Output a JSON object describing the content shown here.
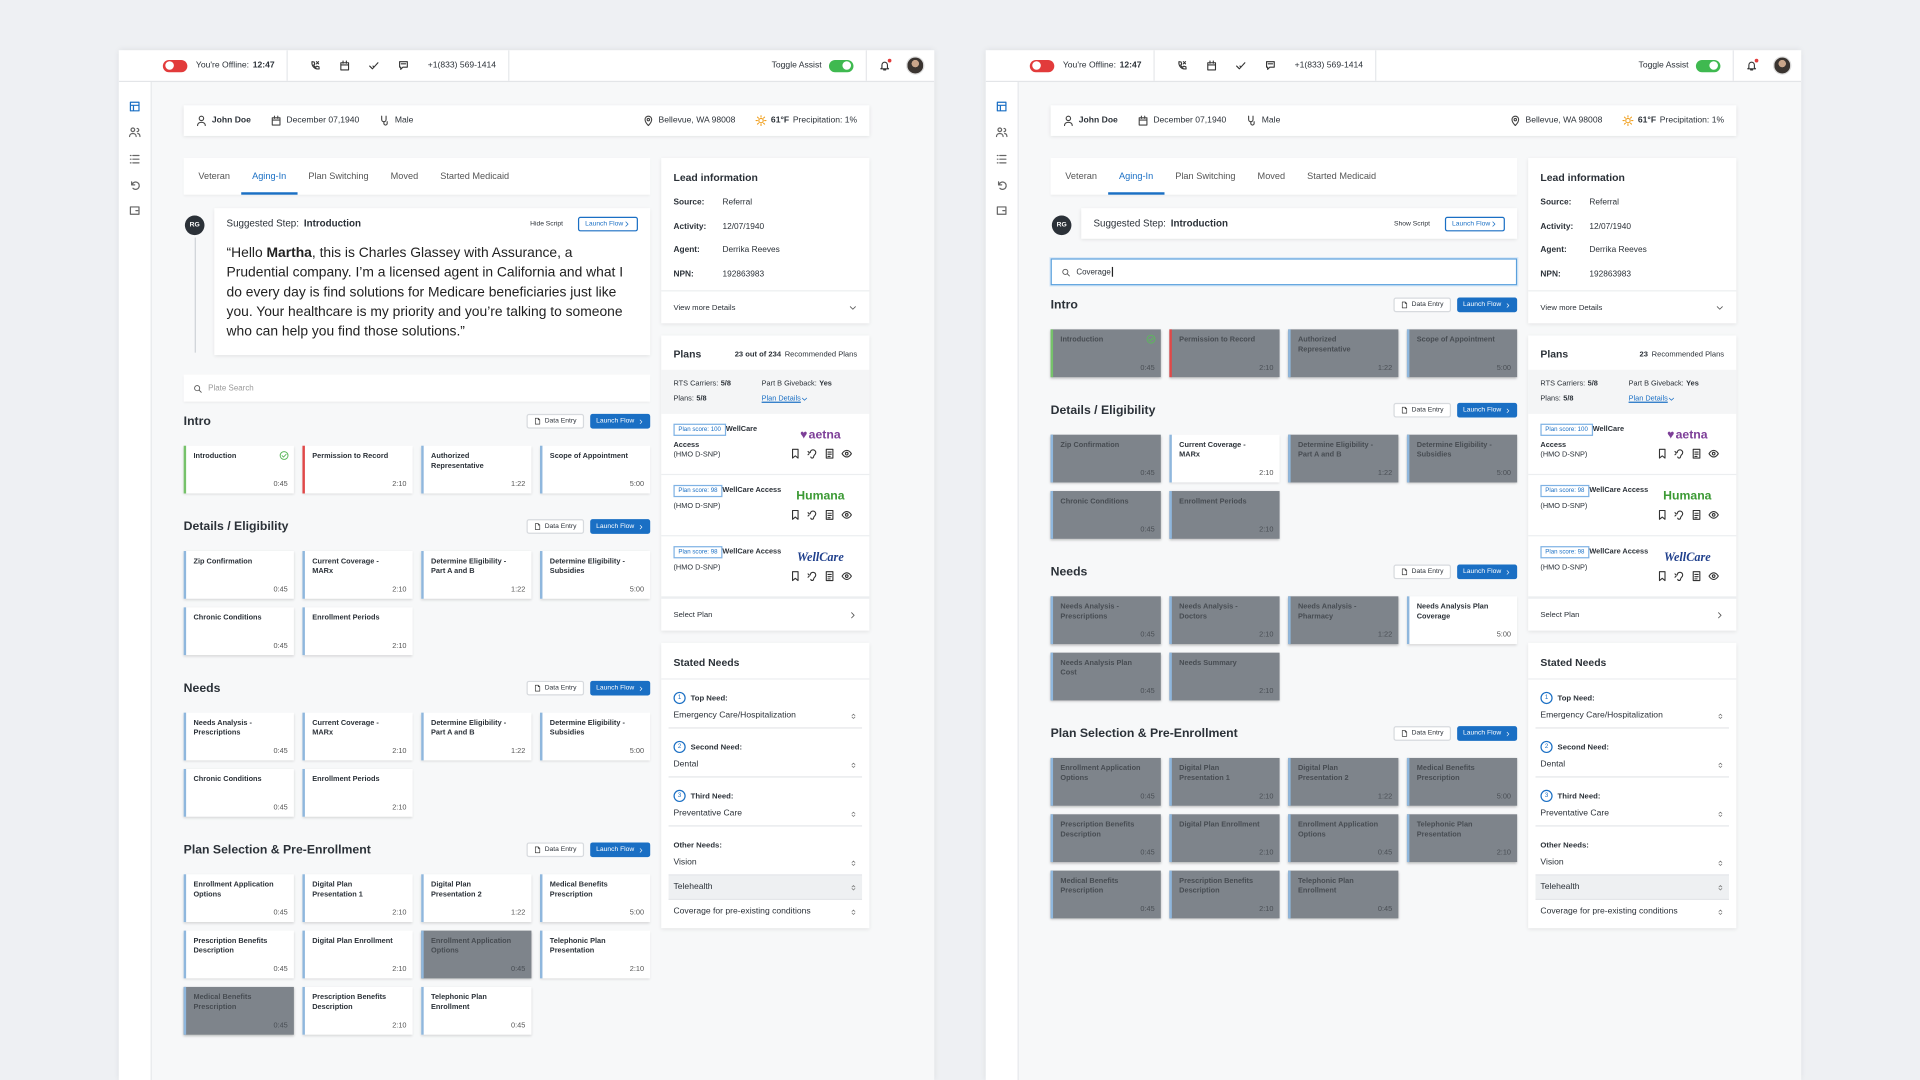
{
  "screens": [
    {
      "topbar": {
        "offline_label": "You're Offline:",
        "offline_time": "12:47",
        "phone": "+1(833) 569-1414",
        "assist_label": "Toggle Assist"
      },
      "patient": {
        "name": "John Doe",
        "dob": "December 07,1940",
        "gender": "Male",
        "location": "Bellevue, WA 98008",
        "temperature": "61°F",
        "precipitation": "Precipitation: 1%"
      },
      "tabs": [
        "Veteran",
        "Aging-In",
        "Plan Switching",
        "Moved",
        "Started Medicaid"
      ],
      "active_tab": 1,
      "suggested": {
        "initials": "RG",
        "label": "Suggested Step:",
        "step": "Introduction",
        "script_toggle": "Hide Script",
        "launch": "Launch Flow",
        "script": [
          {
            "text": "“Hello ",
            "bold": false
          },
          {
            "text": "Martha",
            "bold": true
          },
          {
            "text": ", this is Charles Glassey with Assurance, a Prudential company. I’m a licensed agent in California and what I do every day is find solutions for Medicare beneficiaries just like you. Your healthcare is my priority and you’re talking to someone who can help you find those solutions.”",
            "bold": false
          }
        ]
      },
      "search": {
        "placeholder": "Plate Search"
      },
      "sections": [
        {
          "title": "Intro",
          "data_entry": "Data Entry",
          "launch": "Launch Flow",
          "cards": [
            {
              "title": "Introduction",
              "time": "0:45",
              "state": "complete",
              "muted": false
            },
            {
              "title": "Permission to Record",
              "time": "2:10",
              "state": "declined",
              "muted": false
            },
            {
              "title": "Authorized Representative",
              "time": "1:22",
              "state": "open",
              "muted": false
            },
            {
              "title": "Scope of Appointment",
              "time": "5:00",
              "state": "open",
              "muted": false
            }
          ]
        },
        {
          "title": "Details / Eligibility",
          "data_entry": "Data Entry",
          "launch": "Launch Flow",
          "cards": [
            {
              "title": "Zip Confirmation",
              "time": "0:45",
              "state": "open",
              "muted": false
            },
            {
              "title": "Current Coverage - MARx",
              "time": "2:10",
              "state": "open",
              "muted": false
            },
            {
              "title": "Determine Eligibility - Part A and B",
              "time": "1:22",
              "state": "open",
              "muted": false
            },
            {
              "title": "Determine Eligibility - Subsidies",
              "time": "5:00",
              "state": "open",
              "muted": false
            },
            {
              "title": "Chronic Conditions",
              "time": "0:45",
              "state": "open",
              "muted": false
            },
            {
              "title": "Enrollment Periods",
              "time": "2:10",
              "state": "open",
              "muted": false
            }
          ]
        },
        {
          "title": "Needs",
          "data_entry": "Data Entry",
          "launch": "Launch Flow",
          "cards": [
            {
              "title": "Needs Analysis - Prescriptions",
              "time": "0:45",
              "state": "open",
              "muted": false
            },
            {
              "title": "Current Coverage - MARx",
              "time": "2:10",
              "state": "open",
              "muted": false
            },
            {
              "title": "Determine Eligibility - Part A and B",
              "time": "1:22",
              "state": "open",
              "muted": false
            },
            {
              "title": "Determine Eligibility - Subsidies",
              "time": "5:00",
              "state": "open",
              "muted": false
            },
            {
              "title": "Chronic Conditions",
              "time": "0:45",
              "state": "open",
              "muted": false
            },
            {
              "title": "Enrollment Periods",
              "time": "2:10",
              "state": "open",
              "muted": false
            }
          ]
        },
        {
          "title": "Plan Selection & Pre-Enrollment",
          "data_entry": "Data Entry",
          "launch": "Launch Flow",
          "cards": [
            {
              "title": "Enrollment Application Options",
              "time": "0:45",
              "state": "open",
              "muted": false
            },
            {
              "title": "Digital Plan Presentation 1",
              "time": "2:10",
              "state": "open",
              "muted": false
            },
            {
              "title": "Digital Plan Presentation 2",
              "time": "1:22",
              "state": "open",
              "muted": false
            },
            {
              "title": "Medical Benefits Prescription",
              "time": "5:00",
              "state": "open",
              "muted": false
            },
            {
              "title": "Prescription Benefits Description",
              "time": "0:45",
              "state": "open",
              "muted": false
            },
            {
              "title": "Digital Plan Enrollment",
              "time": "2:10",
              "state": "open",
              "muted": false
            },
            {
              "title": "Enrollment Application Options",
              "time": "0:45",
              "state": "open",
              "muted": true
            },
            {
              "title": "Telephonic Plan Presentation",
              "time": "2:10",
              "state": "open",
              "muted": false
            },
            {
              "title": "Medical Benefits Prescription",
              "time": "0:45",
              "state": "open",
              "muted": true
            },
            {
              "title": "Prescription Benefits Description",
              "time": "2:10",
              "state": "open",
              "muted": false
            },
            {
              "title": "Telephonic Plan Enrollment",
              "time": "0:45",
              "state": "open",
              "muted": false
            }
          ]
        }
      ],
      "lead": {
        "title": "Lead information",
        "rows": [
          {
            "label": "Source:",
            "value": "Referral"
          },
          {
            "label": "Activity:",
            "value": "12/07/1940"
          },
          {
            "label": "Agent:",
            "value": "Derrika Reeves"
          },
          {
            "label": "NPN:",
            "value": "192863983"
          }
        ],
        "more": "View more Details"
      },
      "plans": {
        "title": "Plans",
        "count": "23 out of 234",
        "count_label": "Recommended Plans",
        "rts_label": "RTS Carriers:",
        "rts": "5/8",
        "giveback_label": "Part B Giveback:",
        "giveback": "Yes",
        "plans_label": "Plans:",
        "plans": "5/8",
        "details": "Plan Details",
        "items": [
          {
            "score": "Plan score: 100",
            "name": "WellCare Access",
            "type": "(HMO D-SNP)",
            "carrier": "aetna",
            "carrier_color": "#7d3f98"
          },
          {
            "score": "Plan score: 98",
            "name": "WellCare Access",
            "type": "(HMO D-SNP)",
            "carrier": "Humana",
            "carrier_color": "#3c9a35"
          },
          {
            "score": "Plan score: 98",
            "name": "WellCare Access",
            "type": "(HMO D-SNP)",
            "carrier": "WellCare",
            "carrier_color": "#1f3f8c"
          }
        ],
        "select": "Select Plan"
      },
      "needs": {
        "title": "Stated Needs",
        "ranked": [
          {
            "rank": "1",
            "label": "Top Need:",
            "value": "Emergency Care/Hospitalization"
          },
          {
            "rank": "2",
            "label": "Second Need:",
            "value": "Dental"
          },
          {
            "rank": "3",
            "label": "Third Need:",
            "value": "Preventative Care"
          }
        ],
        "other_label": "Other Needs:",
        "other": [
          "Vision",
          "Telehealth",
          "Coverage for pre-existing conditions"
        ],
        "highlighted_other": 1
      }
    },
    {
      "topbar": {
        "offline_label": "You're Offline:",
        "offline_time": "12:47",
        "phone": "+1(833) 569-1414",
        "assist_label": "Toggle Assist"
      },
      "patient": {
        "name": "John Doe",
        "dob": "December 07,1940",
        "gender": "Male",
        "location": "Bellevue, WA 98008",
        "temperature": "61°F",
        "precipitation": "Precipitation: 1%"
      },
      "tabs": [
        "Veteran",
        "Aging-In",
        "Plan Switching",
        "Moved",
        "Started Medicaid"
      ],
      "active_tab": 1,
      "suggested": {
        "initials": "RG",
        "label": "Suggested Step:",
        "step": "Introduction",
        "script_toggle": "Show Script",
        "launch": "Launch Flow"
      },
      "search": {
        "query": "Coverage"
      },
      "sections": [
        {
          "title": "Intro",
          "data_entry": "Data Entry",
          "launch": "Launch Flow",
          "cards": [
            {
              "title": "Introduction",
              "time": "0:45",
              "state": "complete",
              "muted": true
            },
            {
              "title": "Permission to Record",
              "time": "2:10",
              "state": "declined",
              "muted": true
            },
            {
              "title": "Authorized Representative",
              "time": "1:22",
              "state": "open",
              "muted": true
            },
            {
              "title": "Scope of Appointment",
              "time": "5:00",
              "state": "open",
              "muted": true
            }
          ]
        },
        {
          "title": "Details / Eligibility",
          "data_entry": "Data Entry",
          "launch": "Launch Flow",
          "cards": [
            {
              "title": "Zip Confirmation",
              "time": "0:45",
              "state": "open",
              "muted": true
            },
            {
              "title": "Current Coverage - MARx",
              "time": "2:10",
              "state": "open",
              "muted": false
            },
            {
              "title": "Determine Eligibility - Part A and B",
              "time": "1:22",
              "state": "open",
              "muted": true
            },
            {
              "title": "Determine Eligibility - Subsidies",
              "time": "5:00",
              "state": "open",
              "muted": true
            },
            {
              "title": "Chronic Conditions",
              "time": "0:45",
              "state": "open",
              "muted": true
            },
            {
              "title": "Enrollment Periods",
              "time": "2:10",
              "state": "open",
              "muted": true
            }
          ]
        },
        {
          "title": "Needs",
          "data_entry": "Data Entry",
          "launch": "Launch Flow",
          "cards": [
            {
              "title": "Needs Analysis - Prescriptions",
              "time": "0:45",
              "state": "open",
              "muted": true
            },
            {
              "title": "Needs Analysis - Doctors",
              "time": "2:10",
              "state": "open",
              "muted": true
            },
            {
              "title": "Needs Analysis - Pharmacy",
              "time": "1:22",
              "state": "open",
              "muted": true
            },
            {
              "title": "Needs Analysis Plan Coverage",
              "time": "5:00",
              "state": "open",
              "muted": false
            },
            {
              "title": "Needs Analysis Plan Cost",
              "time": "0:45",
              "state": "open",
              "muted": true
            },
            {
              "title": "Needs Summary",
              "time": "2:10",
              "state": "open",
              "muted": true
            }
          ]
        },
        {
          "title": "Plan Selection & Pre-Enrollment",
          "data_entry": "Data Entry",
          "launch": "Launch Flow",
          "cards": [
            {
              "title": "Enrollment Application Options",
              "time": "0:45",
              "state": "open",
              "muted": true
            },
            {
              "title": "Digital Plan Presentation 1",
              "time": "2:10",
              "state": "open",
              "muted": true
            },
            {
              "title": "Digital Plan Presentation 2",
              "time": "1:22",
              "state": "open",
              "muted": true
            },
            {
              "title": "Medical Benefits Prescription",
              "time": "5:00",
              "state": "open",
              "muted": true
            },
            {
              "title": "Prescription Benefits Description",
              "time": "0:45",
              "state": "open",
              "muted": true
            },
            {
              "title": "Digital Plan Enrollment",
              "time": "2:10",
              "state": "open",
              "muted": true
            },
            {
              "title": "Enrollment Application Options",
              "time": "0:45",
              "state": "open",
              "muted": true
            },
            {
              "title": "Telephonic Plan Presentation",
              "time": "2:10",
              "state": "open",
              "muted": true
            },
            {
              "title": "Medical Benefits Prescription",
              "time": "0:45",
              "state": "open",
              "muted": true
            },
            {
              "title": "Prescription Benefits Description",
              "time": "2:10",
              "state": "open",
              "muted": true
            },
            {
              "title": "Telephonic Plan Enrollment",
              "time": "0:45",
              "state": "open",
              "muted": true
            }
          ]
        }
      ],
      "lead": {
        "title": "Lead information",
        "rows": [
          {
            "label": "Source:",
            "value": "Referral"
          },
          {
            "label": "Activity:",
            "value": "12/07/1940"
          },
          {
            "label": "Agent:",
            "value": "Derrika Reeves"
          },
          {
            "label": "NPN:",
            "value": "192863983"
          }
        ],
        "more": "View more Details"
      },
      "plans": {
        "title": "Plans",
        "count": "23",
        "count_label": "Recommended Plans",
        "rts_label": "RTS Carriers:",
        "rts": "5/8",
        "giveback_label": "Part B Giveback:",
        "giveback": "Yes",
        "plans_label": "Plans:",
        "plans": "5/8",
        "details": "Plan Details",
        "items": [
          {
            "score": "Plan score: 100",
            "name": "WellCare Access",
            "type": "(HMO D-SNP)",
            "carrier": "aetna",
            "carrier_color": "#7d3f98"
          },
          {
            "score": "Plan score: 98",
            "name": "WellCare Access",
            "type": "(HMO D-SNP)",
            "carrier": "Humana",
            "carrier_color": "#3c9a35"
          },
          {
            "score": "Plan score: 98",
            "name": "WellCare Access",
            "type": "(HMO D-SNP)",
            "carrier": "WellCare",
            "carrier_color": "#1f3f8c"
          }
        ],
        "select": "Select Plan"
      },
      "needs": {
        "title": "Stated Needs",
        "ranked": [
          {
            "rank": "1",
            "label": "Top Need:",
            "value": "Emergency Care/Hospitalization"
          },
          {
            "rank": "2",
            "label": "Second Need:",
            "value": "Dental"
          },
          {
            "rank": "3",
            "label": "Third Need:",
            "value": "Preventative Care"
          }
        ],
        "other_label": "Other Needs:",
        "other": [
          "Vision",
          "Telehealth",
          "Coverage for pre-existing conditions"
        ],
        "highlighted_other": 1
      }
    }
  ]
}
